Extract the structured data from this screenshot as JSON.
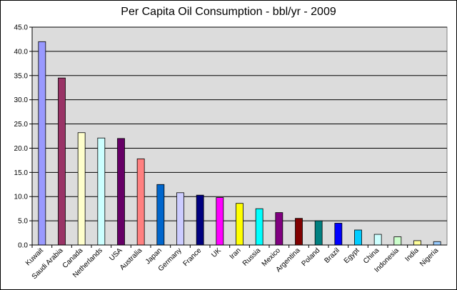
{
  "chart_data": {
    "type": "bar",
    "title": "Per Capita Oil Consumption - bbl/yr - 2009",
    "xlabel": "",
    "ylabel": "",
    "ylim": [
      0,
      45
    ],
    "y_ticks": [
      "0.0",
      "5.0",
      "10.0",
      "15.0",
      "20.0",
      "25.0",
      "30.0",
      "35.0",
      "40.0",
      "45.0"
    ],
    "grid": true,
    "legend": "none",
    "categories": [
      "Kuwait",
      "Saudi Arabia",
      "Canada",
      "Netherlands",
      "USA",
      "Australia",
      "Japan",
      "Germany",
      "France",
      "UK",
      "Iran",
      "Russia",
      "Mexico",
      "Argentina",
      "Poland",
      "Brazil",
      "Egypt",
      "China",
      "Indonesia",
      "India",
      "Nigeria"
    ],
    "values": [
      42.0,
      34.5,
      23.2,
      22.1,
      22.0,
      17.8,
      12.5,
      10.8,
      10.3,
      9.8,
      8.6,
      7.5,
      6.7,
      5.5,
      5.0,
      4.5,
      3.1,
      2.2,
      1.7,
      0.9,
      0.7
    ],
    "colors": [
      "#9999ff",
      "#993366",
      "#ffffcc",
      "#ccffff",
      "#660066",
      "#ff8080",
      "#0066cc",
      "#ccccff",
      "#000080",
      "#ff00ff",
      "#ffff00",
      "#00ffff",
      "#800080",
      "#800000",
      "#008080",
      "#0000ff",
      "#00ccff",
      "#ccffff",
      "#ccffcc",
      "#ffff99",
      "#99ccff"
    ],
    "plot_background": "#dcdcdc"
  }
}
